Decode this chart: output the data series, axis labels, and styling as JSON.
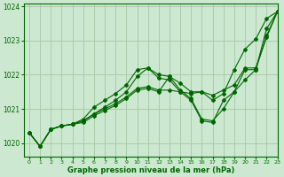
{
  "background_color": "#cce8d0",
  "grid_color": "#aaccaa",
  "line_color": "#006600",
  "title": "Graphe pression niveau de la mer (hPa)",
  "xlim": [
    -0.5,
    23
  ],
  "ylim": [
    1019.6,
    1024.1
  ],
  "yticks": [
    1020,
    1021,
    1022,
    1023,
    1024
  ],
  "xticks": [
    0,
    1,
    2,
    3,
    4,
    5,
    6,
    7,
    8,
    9,
    10,
    11,
    12,
    13,
    14,
    15,
    16,
    17,
    18,
    19,
    20,
    21,
    22,
    23
  ],
  "series": [
    [
      1020.3,
      1019.9,
      1020.4,
      1020.5,
      1020.55,
      1020.65,
      1020.85,
      1021.0,
      1021.15,
      1021.35,
      1021.6,
      1021.65,
      1021.55,
      1021.55,
      1021.5,
      1021.45,
      1021.5,
      1021.4,
      1021.55,
      1021.7,
      1022.2,
      1022.2,
      1023.1,
      1023.85
    ],
    [
      1020.3,
      1019.9,
      1020.4,
      1020.5,
      1020.55,
      1020.7,
      1021.05,
      1021.25,
      1021.45,
      1021.7,
      1022.15,
      1022.2,
      1022.0,
      1021.95,
      1021.55,
      1021.3,
      1020.7,
      1020.65,
      1021.0,
      1021.5,
      1021.85,
      1022.15,
      1023.15,
      1023.85
    ],
    [
      1020.3,
      1019.9,
      1020.4,
      1020.5,
      1020.55,
      1020.65,
      1020.85,
      1021.05,
      1021.25,
      1021.5,
      1021.95,
      1022.2,
      1021.9,
      1021.85,
      1021.5,
      1021.25,
      1020.65,
      1020.6,
      1021.25,
      1021.5,
      1022.15,
      1022.15,
      1023.35,
      1023.85
    ],
    [
      1020.3,
      1019.9,
      1020.4,
      1020.5,
      1020.55,
      1020.6,
      1020.8,
      1020.95,
      1021.1,
      1021.3,
      1021.55,
      1021.6,
      1021.5,
      1021.95,
      1021.75,
      1021.5,
      1021.5,
      1021.25,
      1021.45,
      1022.15,
      1022.75,
      1023.05,
      1023.65,
      1023.85
    ]
  ]
}
